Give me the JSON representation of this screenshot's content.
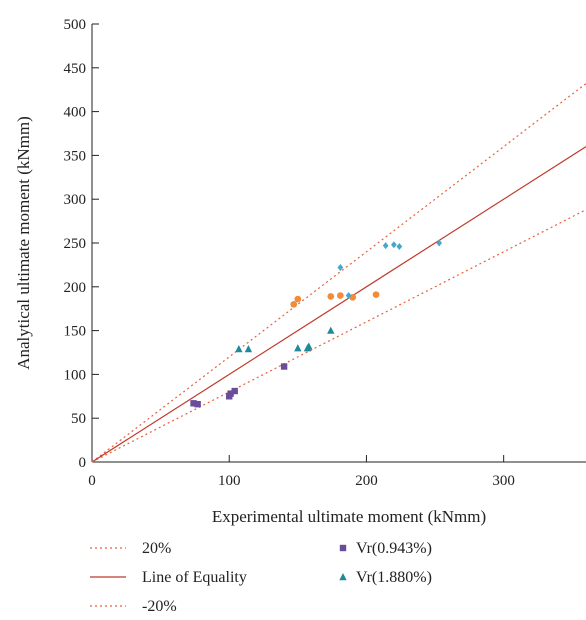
{
  "chart_data": {
    "type": "scatter",
    "title": "",
    "xlabel": "Experimental ultimate moment (kNmm)",
    "ylabel": "Analytical ultimate moment (kNmm)",
    "xlim": [
      0,
      360
    ],
    "ylim": [
      0,
      500
    ],
    "xticks": [
      0,
      100,
      200,
      300
    ],
    "yticks": [
      0,
      50,
      100,
      150,
      200,
      250,
      300,
      350,
      400,
      450,
      500
    ],
    "grid": false,
    "legend_position": "bottom",
    "reference_lines": [
      {
        "name": "20%",
        "slope": 1.2,
        "style": "dotted",
        "color": "#e8603c"
      },
      {
        "name": "Line of Equality",
        "slope": 1.0,
        "style": "solid",
        "color": "#c0392b"
      },
      {
        "name": "-20%",
        "slope": 0.8,
        "style": "dotted",
        "color": "#e8603c"
      }
    ],
    "series": [
      {
        "name": "Vr(0.943%)",
        "marker": "square",
        "color": "#6b4c9a",
        "points": [
          [
            74,
            67
          ],
          [
            77,
            66
          ],
          [
            100,
            75
          ],
          [
            101,
            78
          ],
          [
            104,
            81
          ],
          [
            140,
            109
          ]
        ]
      },
      {
        "name": "Vr(1.880%)",
        "marker": "triangle",
        "color": "#1f8a9a",
        "points": [
          [
            107,
            129
          ],
          [
            114,
            129
          ],
          [
            150,
            130
          ],
          [
            157,
            130
          ],
          [
            158,
            132
          ],
          [
            174,
            150
          ]
        ]
      },
      {
        "name": "",
        "marker": "circle",
        "color": "#f28c38",
        "points": [
          [
            147,
            180
          ],
          [
            150,
            186
          ],
          [
            174,
            189
          ],
          [
            181,
            190
          ],
          [
            190,
            188
          ],
          [
            207,
            191
          ]
        ]
      },
      {
        "name": "",
        "marker": "diamond",
        "color": "#4aa6c9",
        "points": [
          [
            181,
            222
          ],
          [
            187,
            190
          ],
          [
            214,
            247
          ],
          [
            220,
            248
          ],
          [
            224,
            246
          ],
          [
            253,
            250
          ]
        ]
      }
    ]
  }
}
